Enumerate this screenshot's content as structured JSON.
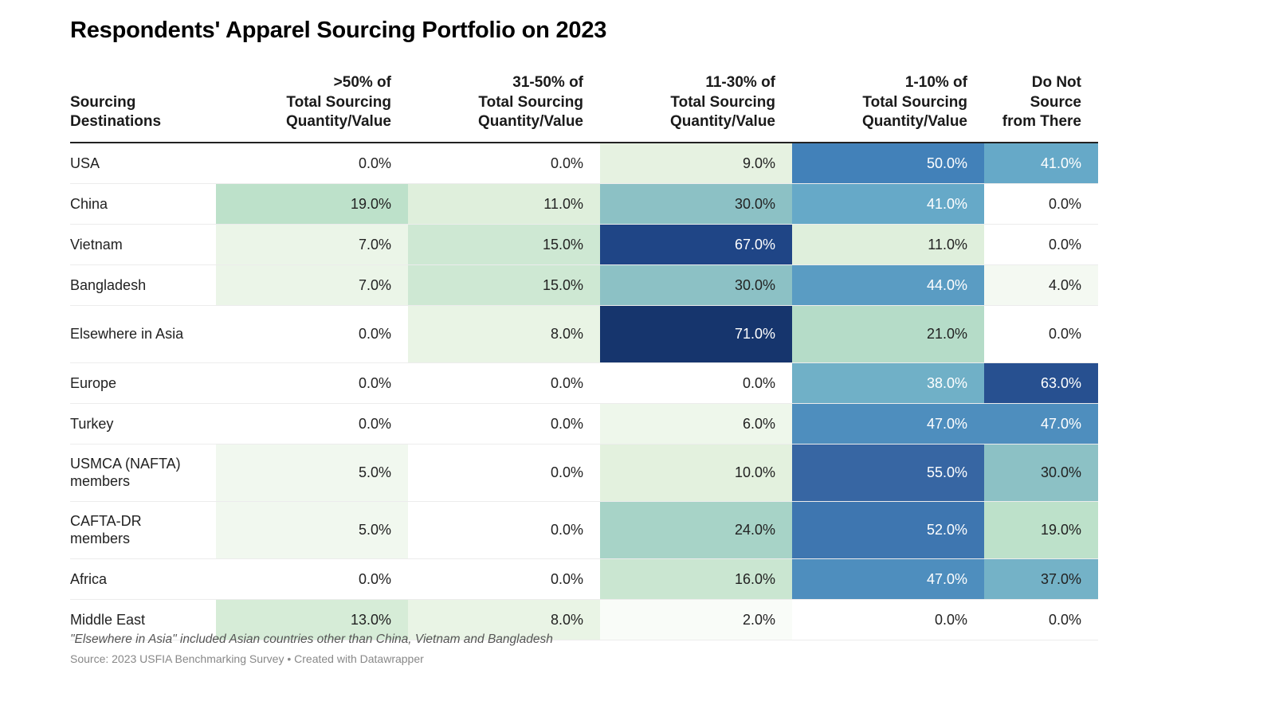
{
  "chart_data": {
    "type": "table",
    "title": "Respondents' Apparel Sourcing Portfolio on 2023",
    "columns": [
      [
        "Sourcing",
        "Destinations"
      ],
      [
        ">50% of",
        "Total Sourcing",
        "Quantity/Value"
      ],
      [
        "31-50% of",
        "Total Sourcing",
        "Quantity/Value"
      ],
      [
        "11-30% of",
        "Total Sourcing",
        "Quantity/Value"
      ],
      [
        "1-10% of",
        "Total Sourcing",
        "Quantity/Value"
      ],
      [
        "Do Not",
        "Source",
        "from There"
      ]
    ],
    "rows": [
      {
        "name": "USA",
        "values": [
          "0.0%",
          "0.0%",
          "9.0%",
          "50.0%",
          "41.0%"
        ]
      },
      {
        "name": "China",
        "values": [
          "19.0%",
          "11.0%",
          "30.0%",
          "41.0%",
          "0.0%"
        ]
      },
      {
        "name": "Vietnam",
        "values": [
          "7.0%",
          "15.0%",
          "67.0%",
          "11.0%",
          "0.0%"
        ]
      },
      {
        "name": "Bangladesh",
        "values": [
          "7.0%",
          "15.0%",
          "30.0%",
          "44.0%",
          "4.0%"
        ]
      },
      {
        "name": "Elsewhere in Asia",
        "values": [
          "0.0%",
          "8.0%",
          "71.0%",
          "21.0%",
          "0.0%"
        ]
      },
      {
        "name": "Europe",
        "values": [
          "0.0%",
          "0.0%",
          "0.0%",
          "38.0%",
          "63.0%"
        ]
      },
      {
        "name": "Turkey",
        "values": [
          "0.0%",
          "0.0%",
          "6.0%",
          "47.0%",
          "47.0%"
        ]
      },
      {
        "name": "USMCA (NAFTA) members",
        "values": [
          "5.0%",
          "0.0%",
          "10.0%",
          "55.0%",
          "30.0%"
        ]
      },
      {
        "name": "CAFTA-DR members",
        "values": [
          "5.0%",
          "0.0%",
          "24.0%",
          "52.0%",
          "19.0%"
        ]
      },
      {
        "name": "Africa",
        "values": [
          "0.0%",
          "0.0%",
          "16.0%",
          "47.0%",
          "37.0%"
        ]
      },
      {
        "name": "Middle East",
        "values": [
          "13.0%",
          "8.0%",
          "2.0%",
          "0.0%",
          "0.0%"
        ]
      }
    ],
    "color_scale": {
      "stops": [
        {
          "value": 0,
          "color": "#ffffff"
        },
        {
          "value": 10,
          "color": "#e3f1de"
        },
        {
          "value": 20,
          "color": "#b9dfc8"
        },
        {
          "value": 30,
          "color": "#8cc1c5"
        },
        {
          "value": 41,
          "color": "#66a9c8"
        },
        {
          "value": 50,
          "color": "#4281b9"
        },
        {
          "value": 55,
          "color": "#3766a3"
        },
        {
          "value": 67,
          "color": "#1f4586"
        },
        {
          "value": 71,
          "color": "#16356d"
        }
      ]
    },
    "note": "\"Elsewhere in Asia\" included Asian countries other than China, Vietnam and Bangladesh",
    "source": "Source: 2023 USFIA Benchmarking Survey • Created with Datawrapper"
  }
}
